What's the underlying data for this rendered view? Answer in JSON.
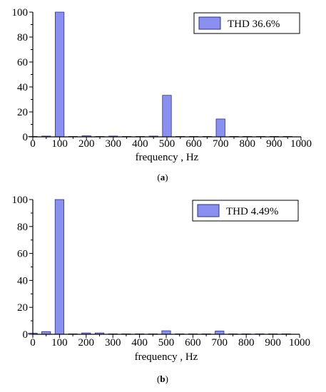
{
  "bar_color": "#8a90f0",
  "bar_stroke": "#2b2f8f",
  "chart_data": [
    {
      "type": "bar",
      "panel_letter": "a",
      "legend": "THD 36.6%",
      "xlabel": "frequency , Hz",
      "ylabel": "",
      "xlim": [
        0,
        1000
      ],
      "ylim": [
        0,
        100
      ],
      "xticks": [
        "0",
        "100",
        "200",
        "300",
        "400",
        "500",
        "600",
        "700",
        "800",
        "900",
        "1000"
      ],
      "yticks": [
        "0",
        "20",
        "40",
        "60",
        "80",
        "100"
      ],
      "x": [
        0,
        50,
        100,
        150,
        200,
        250,
        300,
        350,
        400,
        450,
        500,
        550,
        600,
        650,
        700,
        750,
        800,
        850,
        900,
        950
      ],
      "values": [
        0.3,
        0.6,
        100,
        0.3,
        0.8,
        0.3,
        0.6,
        0.3,
        0.2,
        0.6,
        33.3,
        0.3,
        0.2,
        0.2,
        14.3,
        0.2,
        0.1,
        0.2,
        0.1,
        0.1
      ]
    },
    {
      "type": "bar",
      "panel_letter": "b",
      "legend": "THD 4.49%",
      "xlabel": "frequency , Hz",
      "ylabel": "",
      "xlim": [
        0,
        1000
      ],
      "ylim": [
        0,
        100
      ],
      "xticks": [
        "0",
        "100",
        "200",
        "300",
        "400",
        "500",
        "600",
        "700",
        "800",
        "900",
        "1000"
      ],
      "yticks": [
        "0",
        "20",
        "40",
        "60",
        "80",
        "100"
      ],
      "x": [
        0,
        50,
        100,
        150,
        200,
        250,
        300,
        350,
        400,
        450,
        500,
        550,
        600,
        650,
        700,
        750,
        800,
        850,
        900,
        950
      ],
      "values": [
        0.8,
        2.0,
        100,
        0.3,
        1.0,
        1.0,
        0.3,
        0.2,
        0.2,
        0.2,
        2.6,
        0.2,
        0.2,
        0.2,
        2.4,
        0.2,
        0.1,
        0.1,
        0.1,
        0.1
      ]
    }
  ]
}
